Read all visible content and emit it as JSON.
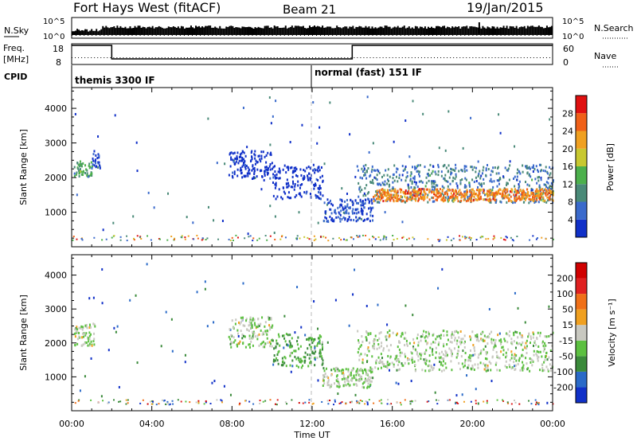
{
  "header": {
    "station": "Fort Hays West (fitACF)",
    "beam": "Beam 21",
    "date": "19/Jan/2015"
  },
  "top_panels": {
    "nsky_label": "N.Sky",
    "nsky_ticks": [
      "10^5",
      "10^0"
    ],
    "nsearch_label": "N.Search",
    "nsearch_ticks": [
      "10^5",
      "10^0"
    ],
    "freq_label": "Freq.",
    "freq_unit": "[MHz]",
    "freq_ticks": [
      "18",
      "8"
    ],
    "nave_label": "Nave",
    "nave_ticks": [
      "60",
      "0"
    ],
    "cpid_label": "CPID",
    "cpid_segments": [
      {
        "label": "themis 3300 IF",
        "start_hour": 0,
        "end_hour": 12
      },
      {
        "label": "normal (fast) 151 IF",
        "start_hour": 12,
        "end_hour": 24
      }
    ],
    "freq_steps": [
      {
        "start_hour": 0,
        "end_hour": 2,
        "level": "high"
      },
      {
        "start_hour": 2,
        "end_hour": 14,
        "level": "low"
      },
      {
        "start_hour": 14,
        "end_hour": 24,
        "level": "high"
      }
    ]
  },
  "chart_data": [
    {
      "type": "heatmap",
      "name": "power",
      "xlabel": "Time UT",
      "ylabel": "Slant Range [km]",
      "xlim": [
        0,
        24
      ],
      "ylim": [
        0,
        4600
      ],
      "x_ticks": [
        "00:00",
        "04:00",
        "08:00",
        "12:00",
        "16:00",
        "20:00",
        "00:00"
      ],
      "x_tick_hours": [
        0,
        4,
        8,
        12,
        16,
        20,
        24
      ],
      "y_ticks": [
        1000,
        2000,
        3000,
        4000
      ],
      "colorbar": {
        "label": "Power [dB]",
        "ticks": [
          "4",
          "8",
          "12",
          "16",
          "20",
          "24",
          "28"
        ],
        "colors": [
          "#1030c8",
          "#3a6acc",
          "#4a8a78",
          "#4cb04c",
          "#c8c830",
          "#f0a020",
          "#f06018",
          "#e01010"
        ]
      },
      "regions": [
        {
          "t0": 0.1,
          "t1": 1.0,
          "r0": 2000,
          "r1": 2500,
          "color_idx": 3
        },
        {
          "t0": 1.0,
          "t1": 1.4,
          "r0": 2300,
          "r1": 2800,
          "color_idx": 1
        },
        {
          "t0": 7.8,
          "t1": 10.0,
          "r0": 2000,
          "r1": 2800,
          "color_idx": 0
        },
        {
          "t0": 10.0,
          "t1": 12.5,
          "r0": 1400,
          "r1": 2400,
          "color_idx": 0
        },
        {
          "t0": 12.5,
          "t1": 15.0,
          "r0": 750,
          "r1": 1400,
          "color_idx": 1
        },
        {
          "t0": 14.2,
          "t1": 24.0,
          "r0": 1300,
          "r1": 2400,
          "color_idx": 2
        },
        {
          "t0": 15.0,
          "t1": 24.0,
          "r0": 1350,
          "r1": 1700,
          "color_idx": 6
        }
      ]
    },
    {
      "type": "heatmap",
      "name": "velocity",
      "xlabel": "Time UT",
      "ylabel": "Slant Range [km]",
      "xlim": [
        0,
        24
      ],
      "ylim": [
        0,
        4600
      ],
      "x_ticks": [
        "00:00",
        "04:00",
        "08:00",
        "12:00",
        "16:00",
        "20:00",
        "00:00"
      ],
      "x_tick_hours": [
        0,
        4,
        8,
        12,
        16,
        20,
        24
      ],
      "y_ticks": [
        1000,
        2000,
        3000,
        4000
      ],
      "colorbar": {
        "label": "Velocity [m s⁻¹]",
        "ticks": [
          "200",
          "100",
          "50",
          "15",
          "-15",
          "-50",
          "-100",
          "-200"
        ],
        "colors": [
          "#1030c8",
          "#2a6ac8",
          "#3a8a3a",
          "#5cc040",
          "#c8c8c0",
          "#f0a020",
          "#f07018",
          "#e02020",
          "#d00000"
        ]
      },
      "regions": [
        {
          "t0": 0.1,
          "t1": 1.2,
          "r0": 1950,
          "r1": 2600,
          "color_idx": 4
        },
        {
          "t0": 7.8,
          "t1": 10.0,
          "r0": 1900,
          "r1": 2800,
          "color_idx": 4
        },
        {
          "t0": 10.0,
          "t1": 12.5,
          "r0": 1300,
          "r1": 2300,
          "color_idx": 3
        },
        {
          "t0": 12.5,
          "t1": 15.0,
          "r0": 700,
          "r1": 1300,
          "color_idx": 4
        },
        {
          "t0": 14.2,
          "t1": 24.0,
          "r0": 1200,
          "r1": 2400,
          "color_idx": 4
        }
      ]
    }
  ]
}
